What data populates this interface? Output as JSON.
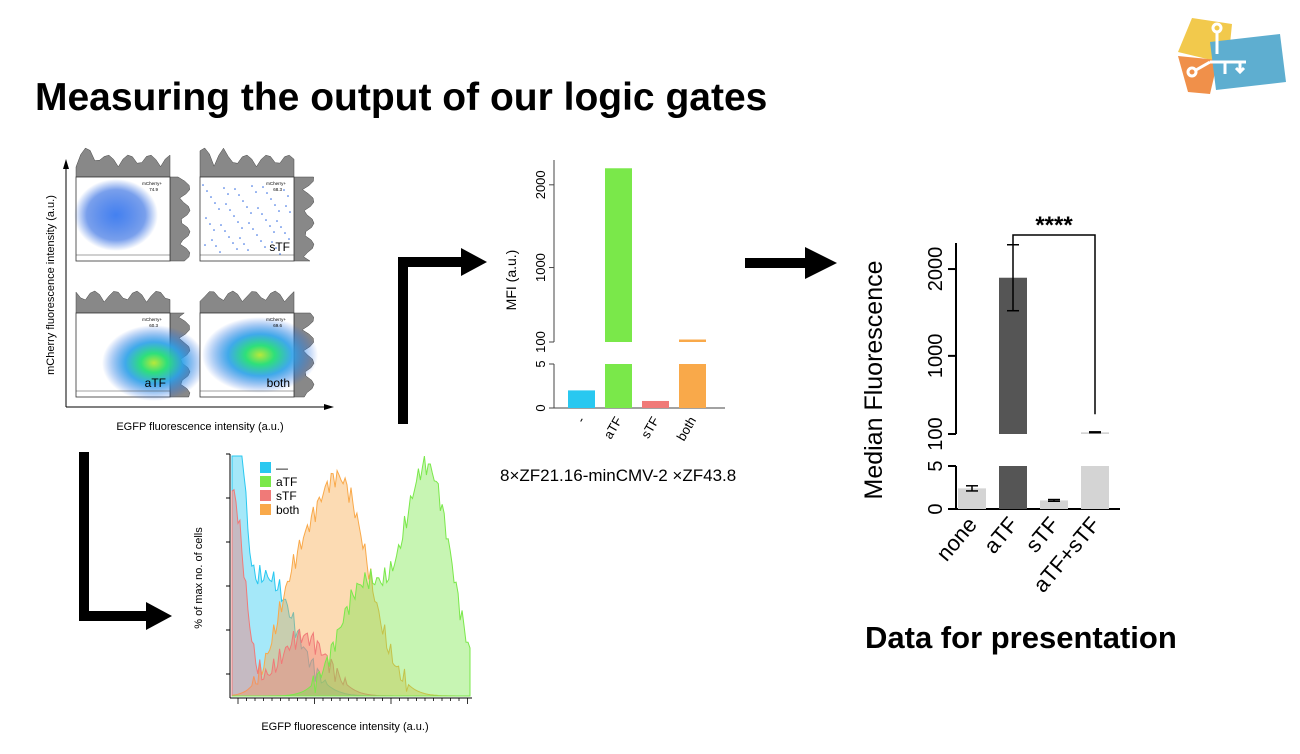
{
  "slide": {
    "title": "Measuring the output of our logic gates",
    "construct": "8×ZF21.16-minCMV-2 ×ZF43.8",
    "caption": "Data for presentation",
    "logo_icon": "circuit-logo-icon",
    "colors": {
      "none": "#29c8f0",
      "aTF": "#7ae84a",
      "sTF": "#f07a78",
      "both": "#f9a94a",
      "dark_bar": "#555555",
      "light_bar": "#d4d4d4"
    }
  },
  "chart_data": [
    {
      "type": "scatter",
      "name_hint": "flow-density-plots",
      "xlabel": "EGFP fluorescence intensity (a.u.)",
      "ylabel": "mCherry fluorescence intensity (a.u.)",
      "panels": [
        {
          "label": "",
          "gate_label": "mCherry+",
          "gate_value": "74.9"
        },
        {
          "label": "sTF",
          "gate_label": "mCherry+",
          "gate_value": "68.3"
        },
        {
          "label": "aTF",
          "gate_label": "mCherry+",
          "gate_value": "60.3"
        },
        {
          "label": "both",
          "gate_label": "mCherry+",
          "gate_value": "69.6"
        }
      ]
    },
    {
      "type": "bar",
      "ylabel": "MFI (a.u.)",
      "categories": [
        "-",
        "aTF",
        "sTF",
        "both"
      ],
      "values": [
        2,
        2200,
        0.8,
        130
      ],
      "yaxis_lower": {
        "range": [
          0,
          5
        ],
        "ticks": [
          "0",
          "5"
        ]
      },
      "yaxis_upper": {
        "range": [
          100,
          2300
        ],
        "ticks": [
          "100",
          "1000",
          "2000"
        ]
      }
    },
    {
      "type": "area",
      "xlabel": "EGFP fluorescence intensity (a.u.)",
      "ylabel": "% of max no. of cells",
      "legend": [
        "—",
        "aTF",
        "sTF",
        "both"
      ],
      "legend_position": "top-left"
    },
    {
      "type": "bar",
      "ylabel": "Median Fluorescence",
      "categories": [
        "none",
        "aTF",
        "sTF",
        "aTF+sTF"
      ],
      "values": [
        2.4,
        1900,
        1.0,
        120
      ],
      "errors": [
        0.3,
        380,
        0.1,
        5
      ],
      "yaxis_lower": {
        "range": [
          0,
          5
        ],
        "ticks": [
          "0",
          "5"
        ]
      },
      "yaxis_upper": {
        "range": [
          100,
          2300
        ],
        "ticks": [
          "100",
          "1000",
          "2000"
        ]
      },
      "significance": {
        "from": "aTF",
        "to": "aTF+sTF",
        "label": "****"
      }
    }
  ]
}
